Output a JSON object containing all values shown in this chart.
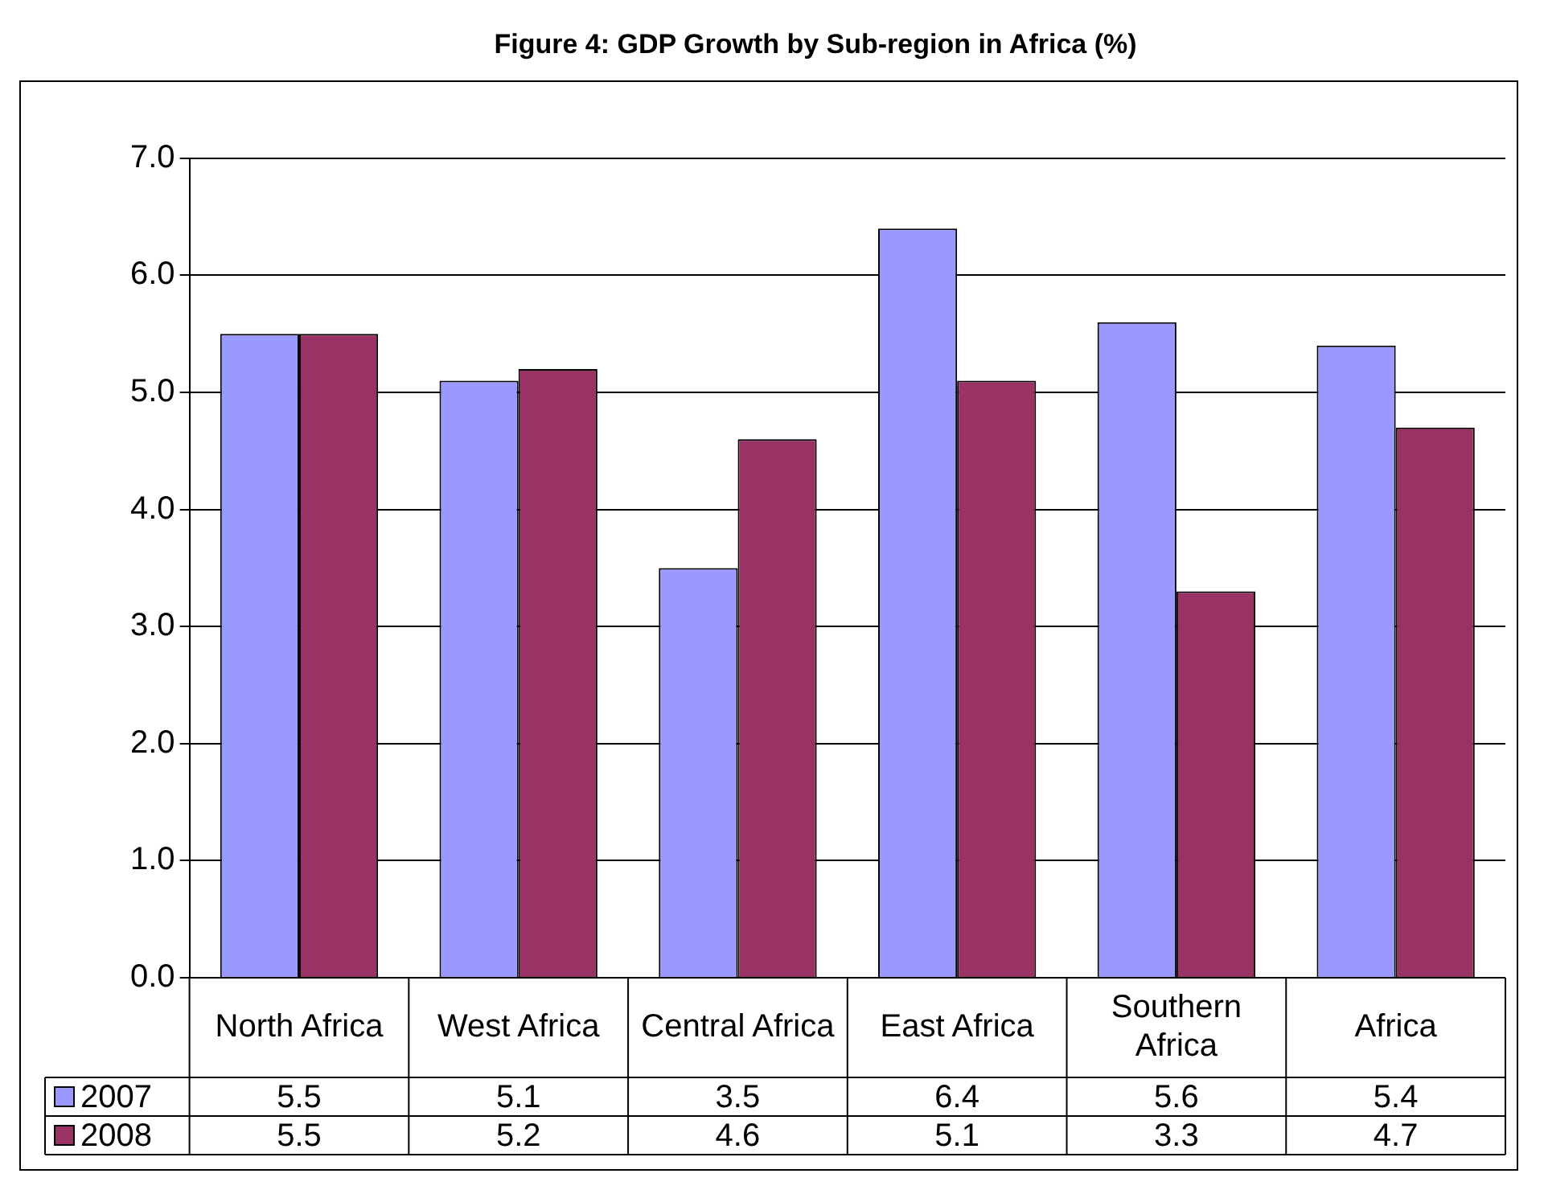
{
  "chart_data": {
    "type": "bar",
    "title": "Figure 4: GDP Growth by Sub-region in Africa (%)",
    "categories": [
      "North Africa",
      "West Africa",
      "Central Africa",
      "East Africa",
      "Southern Africa",
      "Africa"
    ],
    "series": [
      {
        "name": "2007",
        "color": "#9999ff",
        "values": [
          5.5,
          5.1,
          3.5,
          6.4,
          5.6,
          5.4
        ]
      },
      {
        "name": "2008",
        "color": "#993366",
        "values": [
          5.5,
          5.2,
          4.6,
          5.1,
          3.3,
          4.7
        ]
      }
    ],
    "ylim": [
      0,
      7
    ],
    "yticks": [
      {
        "value": 0,
        "label": "0.0"
      },
      {
        "value": 1,
        "label": "1.0"
      },
      {
        "value": 2,
        "label": "2.0"
      },
      {
        "value": 3,
        "label": "3.0"
      },
      {
        "value": 4,
        "label": "4.0"
      },
      {
        "value": 5,
        "label": "5.0"
      },
      {
        "value": 6,
        "label": "6.0"
      },
      {
        "value": 7,
        "label": "7.0"
      }
    ],
    "grid": "y",
    "legend": "bottom",
    "data_labels": true
  }
}
